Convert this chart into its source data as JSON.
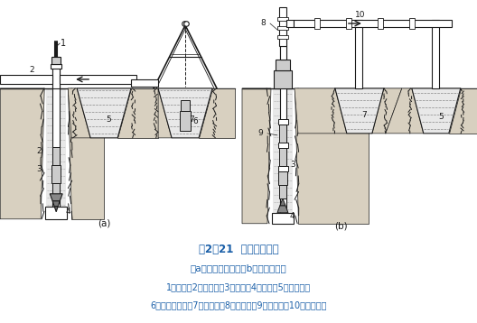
{
  "title_line1": "图2－21  循环排渣方法",
  "title_line2": "（a）正循环排渣；（b）反循环排渣",
  "legend_line1": "1－钻杆；2－送水管；3－主机；4－钻头；5－沉淀池；",
  "legend_line2": "6－潜水泥浆泵；7－泥浆泵；8－砂石泵；9－抽渣管；10－排渣胶管",
  "title_color": "#1a5fa8",
  "legend_color": "#1a5fa8",
  "bg_color": "#ffffff",
  "label_a": "(a)",
  "label_b": "(b)",
  "fig_width": 5.28,
  "fig_height": 3.58,
  "dpi": 100
}
